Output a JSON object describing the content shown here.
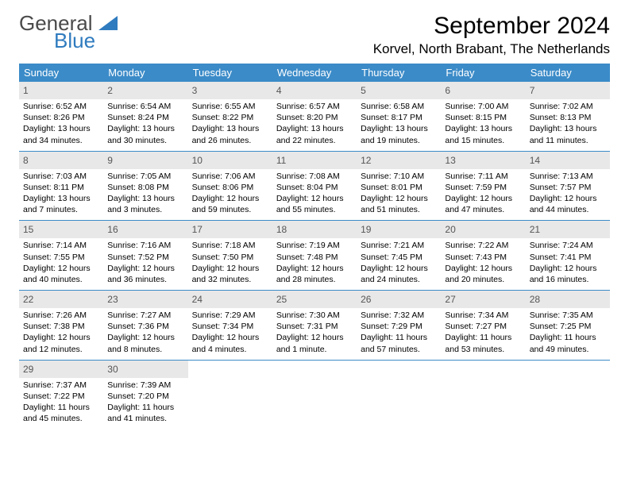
{
  "logo": {
    "text1": "General",
    "text2": "Blue"
  },
  "title": "September 2024",
  "location": "Korvel, North Brabant, The Netherlands",
  "colors": {
    "header_bg": "#3b8bc8",
    "header_text": "#ffffff",
    "daynum_bg": "#e8e8e8",
    "daynum_text": "#555555",
    "body_text": "#000000",
    "row_border": "#3b8bc8",
    "logo_gray": "#4a4a4a",
    "logo_blue": "#2f7bbf"
  },
  "weekdays": [
    "Sunday",
    "Monday",
    "Tuesday",
    "Wednesday",
    "Thursday",
    "Friday",
    "Saturday"
  ],
  "weeks": [
    [
      {
        "n": "1",
        "sr": "6:52 AM",
        "ss": "8:26 PM",
        "dl": "13 hours and 34 minutes."
      },
      {
        "n": "2",
        "sr": "6:54 AM",
        "ss": "8:24 PM",
        "dl": "13 hours and 30 minutes."
      },
      {
        "n": "3",
        "sr": "6:55 AM",
        "ss": "8:22 PM",
        "dl": "13 hours and 26 minutes."
      },
      {
        "n": "4",
        "sr": "6:57 AM",
        "ss": "8:20 PM",
        "dl": "13 hours and 22 minutes."
      },
      {
        "n": "5",
        "sr": "6:58 AM",
        "ss": "8:17 PM",
        "dl": "13 hours and 19 minutes."
      },
      {
        "n": "6",
        "sr": "7:00 AM",
        "ss": "8:15 PM",
        "dl": "13 hours and 15 minutes."
      },
      {
        "n": "7",
        "sr": "7:02 AM",
        "ss": "8:13 PM",
        "dl": "13 hours and 11 minutes."
      }
    ],
    [
      {
        "n": "8",
        "sr": "7:03 AM",
        "ss": "8:11 PM",
        "dl": "13 hours and 7 minutes."
      },
      {
        "n": "9",
        "sr": "7:05 AM",
        "ss": "8:08 PM",
        "dl": "13 hours and 3 minutes."
      },
      {
        "n": "10",
        "sr": "7:06 AM",
        "ss": "8:06 PM",
        "dl": "12 hours and 59 minutes."
      },
      {
        "n": "11",
        "sr": "7:08 AM",
        "ss": "8:04 PM",
        "dl": "12 hours and 55 minutes."
      },
      {
        "n": "12",
        "sr": "7:10 AM",
        "ss": "8:01 PM",
        "dl": "12 hours and 51 minutes."
      },
      {
        "n": "13",
        "sr": "7:11 AM",
        "ss": "7:59 PM",
        "dl": "12 hours and 47 minutes."
      },
      {
        "n": "14",
        "sr": "7:13 AM",
        "ss": "7:57 PM",
        "dl": "12 hours and 44 minutes."
      }
    ],
    [
      {
        "n": "15",
        "sr": "7:14 AM",
        "ss": "7:55 PM",
        "dl": "12 hours and 40 minutes."
      },
      {
        "n": "16",
        "sr": "7:16 AM",
        "ss": "7:52 PM",
        "dl": "12 hours and 36 minutes."
      },
      {
        "n": "17",
        "sr": "7:18 AM",
        "ss": "7:50 PM",
        "dl": "12 hours and 32 minutes."
      },
      {
        "n": "18",
        "sr": "7:19 AM",
        "ss": "7:48 PM",
        "dl": "12 hours and 28 minutes."
      },
      {
        "n": "19",
        "sr": "7:21 AM",
        "ss": "7:45 PM",
        "dl": "12 hours and 24 minutes."
      },
      {
        "n": "20",
        "sr": "7:22 AM",
        "ss": "7:43 PM",
        "dl": "12 hours and 20 minutes."
      },
      {
        "n": "21",
        "sr": "7:24 AM",
        "ss": "7:41 PM",
        "dl": "12 hours and 16 minutes."
      }
    ],
    [
      {
        "n": "22",
        "sr": "7:26 AM",
        "ss": "7:38 PM",
        "dl": "12 hours and 12 minutes."
      },
      {
        "n": "23",
        "sr": "7:27 AM",
        "ss": "7:36 PM",
        "dl": "12 hours and 8 minutes."
      },
      {
        "n": "24",
        "sr": "7:29 AM",
        "ss": "7:34 PM",
        "dl": "12 hours and 4 minutes."
      },
      {
        "n": "25",
        "sr": "7:30 AM",
        "ss": "7:31 PM",
        "dl": "12 hours and 1 minute."
      },
      {
        "n": "26",
        "sr": "7:32 AM",
        "ss": "7:29 PM",
        "dl": "11 hours and 57 minutes."
      },
      {
        "n": "27",
        "sr": "7:34 AM",
        "ss": "7:27 PM",
        "dl": "11 hours and 53 minutes."
      },
      {
        "n": "28",
        "sr": "7:35 AM",
        "ss": "7:25 PM",
        "dl": "11 hours and 49 minutes."
      }
    ],
    [
      {
        "n": "29",
        "sr": "7:37 AM",
        "ss": "7:22 PM",
        "dl": "11 hours and 45 minutes."
      },
      {
        "n": "30",
        "sr": "7:39 AM",
        "ss": "7:20 PM",
        "dl": "11 hours and 41 minutes."
      },
      null,
      null,
      null,
      null,
      null
    ]
  ],
  "labels": {
    "sunrise": "Sunrise:",
    "sunset": "Sunset:",
    "daylight": "Daylight:"
  }
}
